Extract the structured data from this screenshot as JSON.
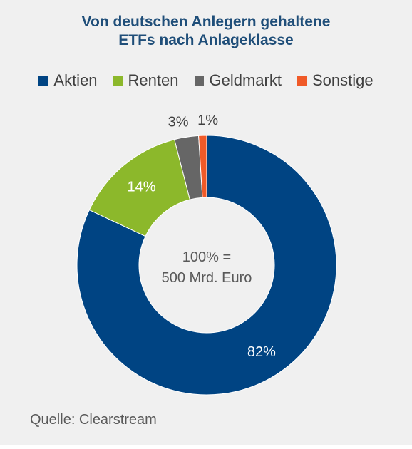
{
  "title_line1": "Von deutschen Anlegern gehaltene",
  "title_line2": "ETFs nach Anlageklasse",
  "center_line1": "100% =",
  "center_line2": "500 Mrd. Euro",
  "source": "Quelle: Clearstream",
  "chart_data": {
    "type": "pie",
    "donut": true,
    "title": "Von deutschen Anlegern gehaltene ETFs nach Anlageklasse",
    "categories": [
      "Aktien",
      "Renten",
      "Geldmarkt",
      "Sonstige"
    ],
    "values": [
      82,
      14,
      3,
      1
    ],
    "data_labels": [
      "82%",
      "14%",
      "3%",
      "1%"
    ],
    "colors": [
      "#004483",
      "#8cb82b",
      "#666666",
      "#f05a28"
    ],
    "label_colors": [
      "#ffffff",
      "#ffffff",
      "#404040",
      "#404040"
    ],
    "legend_position": "top",
    "start": "12 o'clock",
    "direction": "clockwise",
    "total_label": "100% = 500 Mrd. Euro"
  }
}
